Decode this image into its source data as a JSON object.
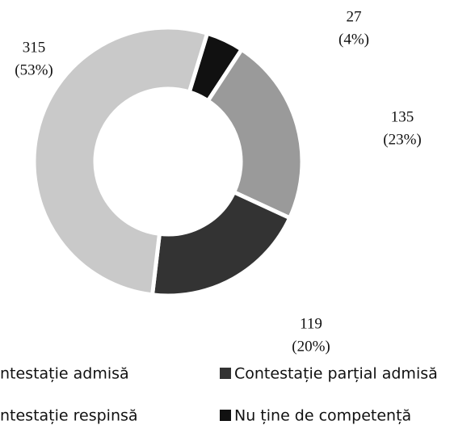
{
  "chart_data": {
    "type": "donut",
    "categories": [
      "Nu ține de competență",
      "ntestație admisă",
      "Contestație parțial admisă",
      "ntestație respinsă"
    ],
    "values": [
      27,
      135,
      119,
      315
    ],
    "percents": [
      4,
      23,
      20,
      53
    ],
    "percent_labels": [
      "(4%)",
      "(23%)",
      "(20%)",
      "(53%)"
    ],
    "colors": [
      "#111111",
      "#9a9a9a",
      "#333333",
      "#c9c9c9"
    ]
  }
}
